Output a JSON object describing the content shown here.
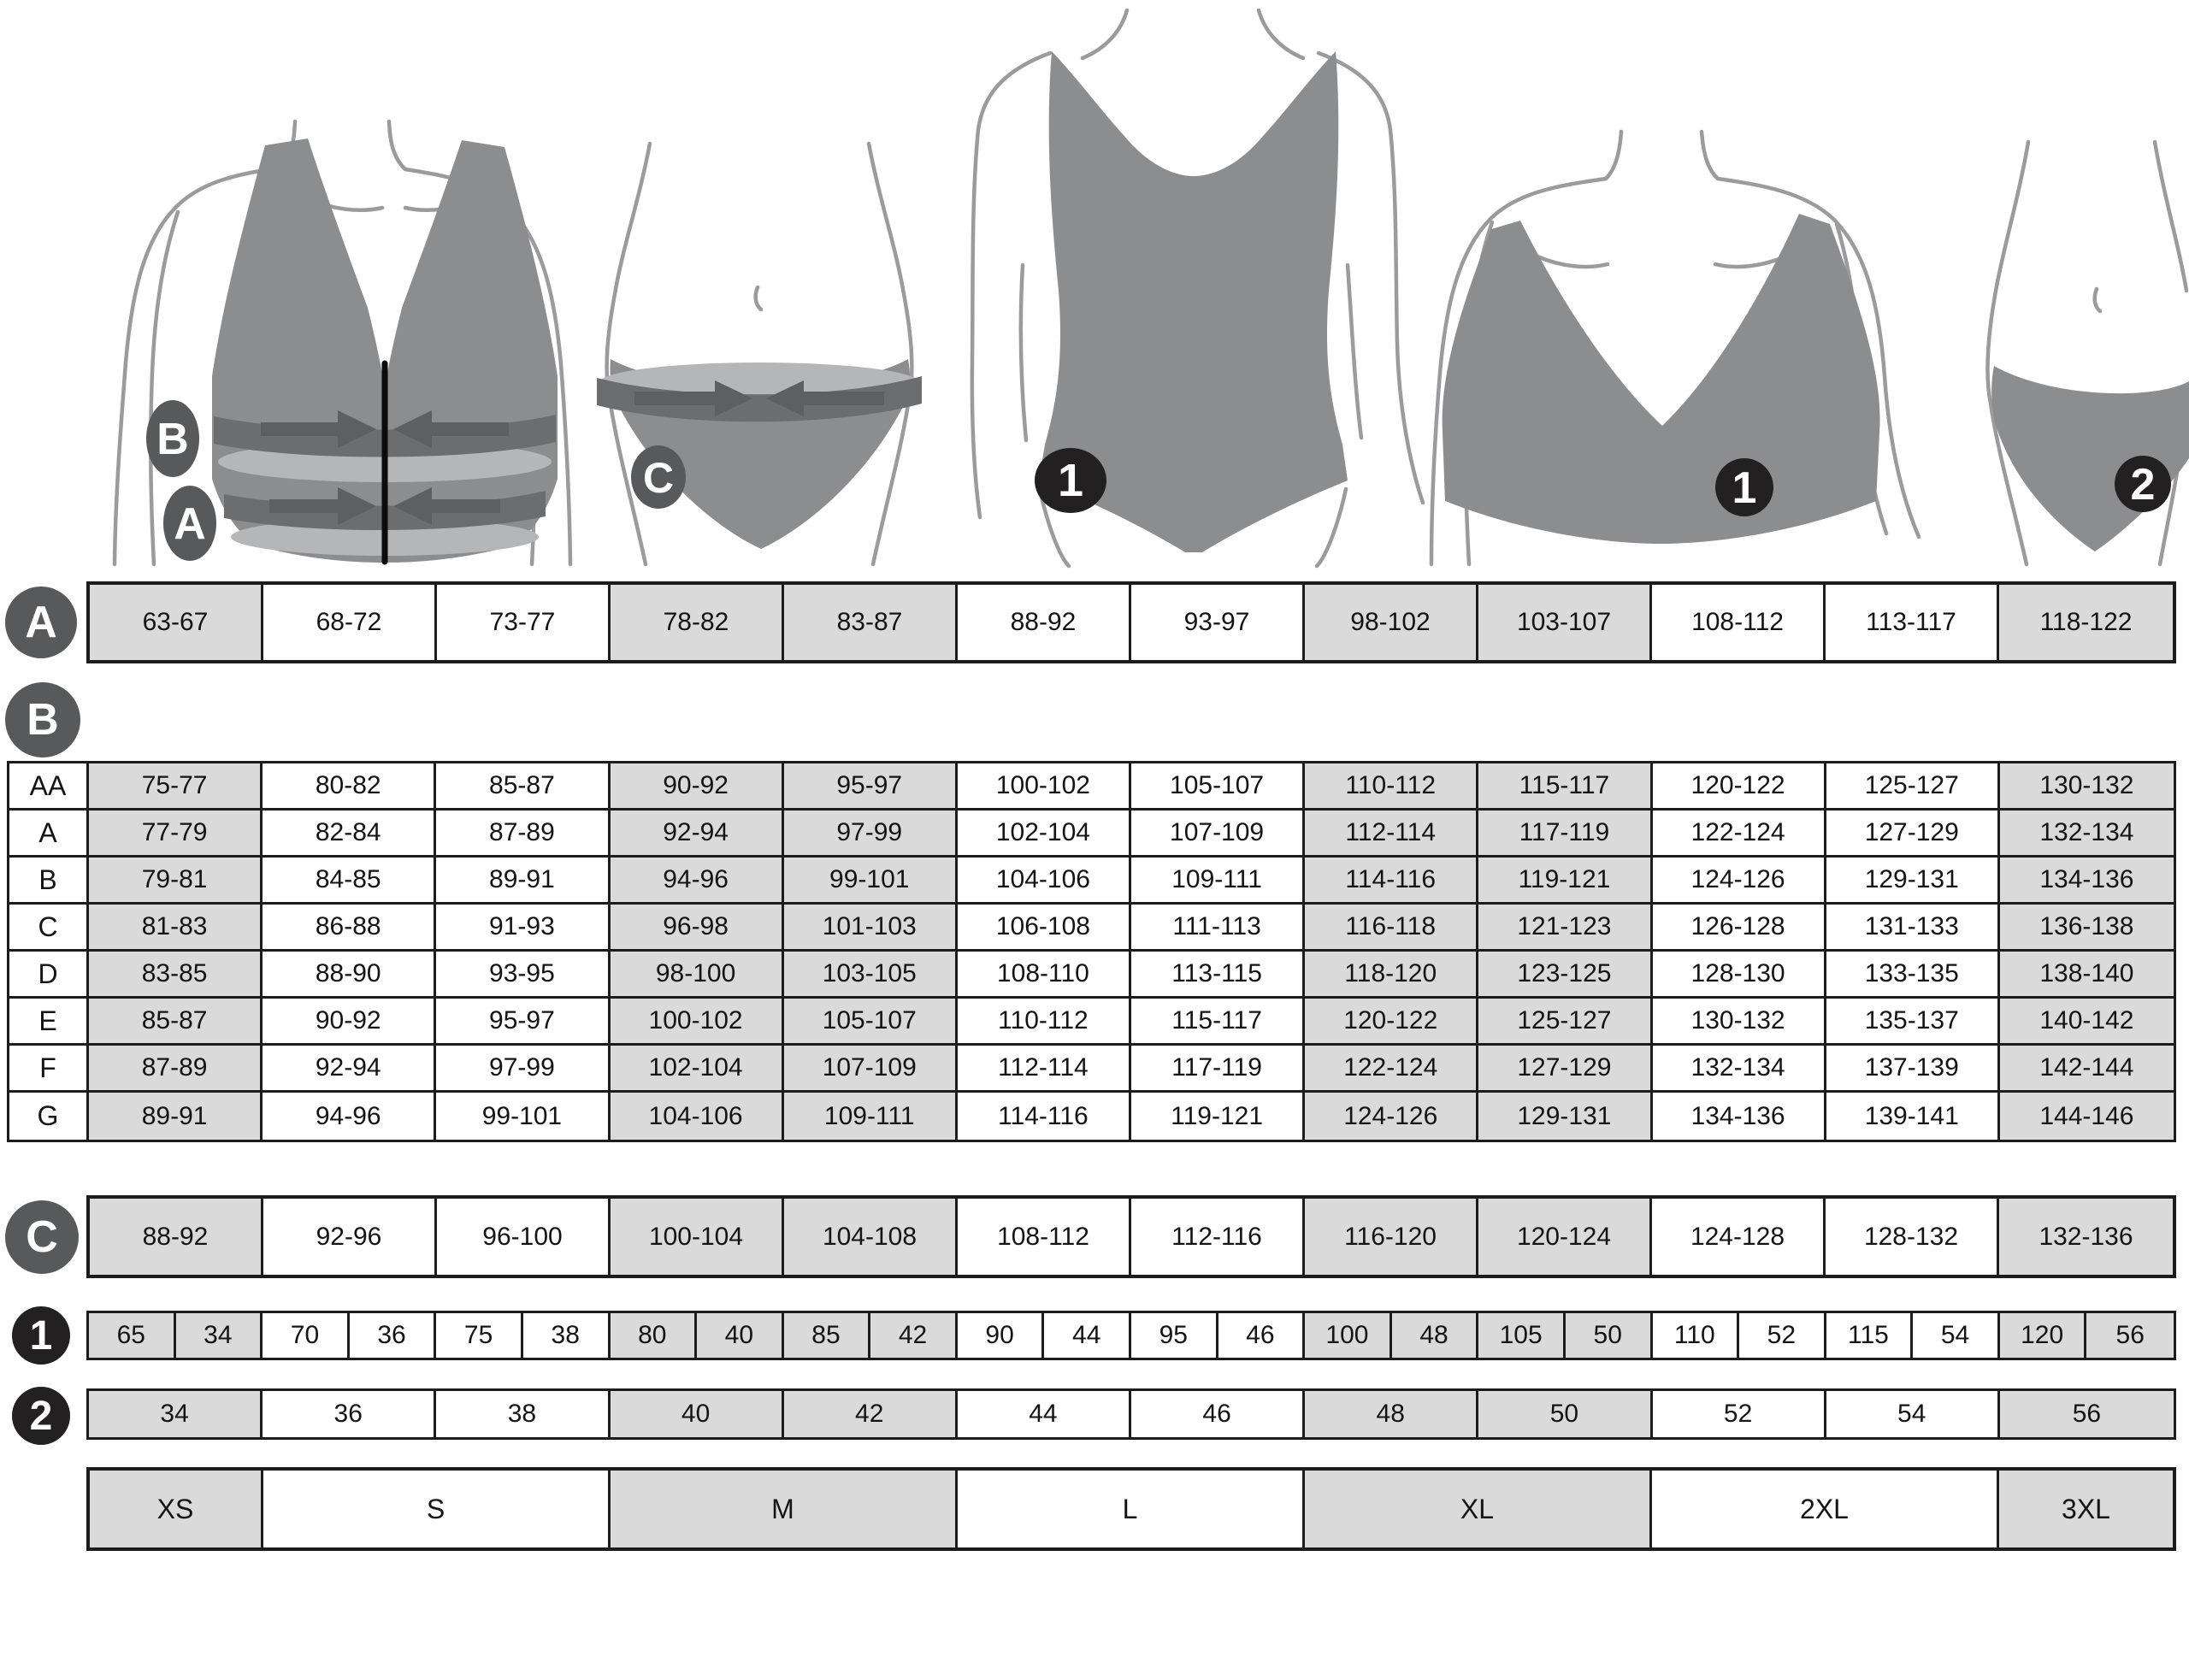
{
  "illustrations": {
    "bra_measure": {
      "bust_marker": "B",
      "underbust_marker": "A"
    },
    "hip_measure": {
      "hip_marker": "C"
    },
    "swimsuit": {
      "badge": "1"
    },
    "bra_product": {
      "badge": "1"
    },
    "panty_product": {
      "badge": "2"
    }
  },
  "rows": {
    "a": {
      "marker": "A",
      "values": [
        "63-67",
        "68-72",
        "73-77",
        "78-82",
        "83-87",
        "88-92",
        "93-97",
        "98-102",
        "103-107",
        "108-112",
        "113-117",
        "118-122"
      ]
    },
    "b": {
      "marker": "B",
      "row_labels": [
        "AA",
        "A",
        "B",
        "C",
        "D",
        "E",
        "F",
        "G"
      ],
      "rows": [
        [
          "75-77",
          "80-82",
          "85-87",
          "90-92",
          "95-97",
          "100-102",
          "105-107",
          "110-112",
          "115-117",
          "120-122",
          "125-127",
          "130-132"
        ],
        [
          "77-79",
          "82-84",
          "87-89",
          "92-94",
          "97-99",
          "102-104",
          "107-109",
          "112-114",
          "117-119",
          "122-124",
          "127-129",
          "132-134"
        ],
        [
          "79-81",
          "84-85",
          "89-91",
          "94-96",
          "99-101",
          "104-106",
          "109-111",
          "114-116",
          "119-121",
          "124-126",
          "129-131",
          "134-136"
        ],
        [
          "81-83",
          "86-88",
          "91-93",
          "96-98",
          "101-103",
          "106-108",
          "111-113",
          "116-118",
          "121-123",
          "126-128",
          "131-133",
          "136-138"
        ],
        [
          "83-85",
          "88-90",
          "93-95",
          "98-100",
          "103-105",
          "108-110",
          "113-115",
          "118-120",
          "123-125",
          "128-130",
          "133-135",
          "138-140"
        ],
        [
          "85-87",
          "90-92",
          "95-97",
          "100-102",
          "105-107",
          "110-112",
          "115-117",
          "120-122",
          "125-127",
          "130-132",
          "135-137",
          "140-142"
        ],
        [
          "87-89",
          "92-94",
          "97-99",
          "102-104",
          "107-109",
          "112-114",
          "117-119",
          "122-124",
          "127-129",
          "132-134",
          "137-139",
          "142-144"
        ],
        [
          "89-91",
          "94-96",
          "99-101",
          "104-106",
          "109-111",
          "114-116",
          "119-121",
          "124-126",
          "129-131",
          "134-136",
          "139-141",
          "144-146"
        ]
      ]
    },
    "c": {
      "marker": "C",
      "values": [
        "88-92",
        "92-96",
        "96-100",
        "100-104",
        "104-108",
        "108-112",
        "112-116",
        "116-120",
        "120-124",
        "124-128",
        "128-132",
        "132-136"
      ]
    },
    "band1": {
      "marker": "1",
      "values": [
        "65",
        "34",
        "70",
        "36",
        "75",
        "38",
        "80",
        "40",
        "85",
        "42",
        "90",
        "44",
        "95",
        "46",
        "100",
        "48",
        "105",
        "50",
        "110",
        "52",
        "115",
        "54",
        "120",
        "56"
      ]
    },
    "band2": {
      "marker": "2",
      "values": [
        "34",
        "36",
        "38",
        "40",
        "42",
        "44",
        "46",
        "48",
        "50",
        "52",
        "54",
        "56"
      ]
    },
    "sizes": {
      "groups": [
        {
          "label": "XS",
          "span": 1
        },
        {
          "label": "S",
          "span": 2
        },
        {
          "label": "M",
          "span": 2
        },
        {
          "label": "L",
          "span": 2
        },
        {
          "label": "XL",
          "span": 2
        },
        {
          "label": "2XL",
          "span": 2
        },
        {
          "label": "3XL",
          "span": 1
        }
      ]
    }
  },
  "grid": {
    "columns": 12,
    "shaded_columns": [
      0,
      3,
      4,
      7,
      8,
      11
    ],
    "shaded_size_groups": [
      0,
      2,
      4,
      6
    ]
  },
  "colors": {
    "cell_shaded": "#dadada",
    "table_border": "#1c1c1c",
    "marker_circle": "#58595b",
    "badge_black": "#232021",
    "garment_gray": "#8c8d8f",
    "band_dark": "#6c6d6f",
    "band_light": "#b5b6b8",
    "body_outline": "#9b9b9d"
  }
}
